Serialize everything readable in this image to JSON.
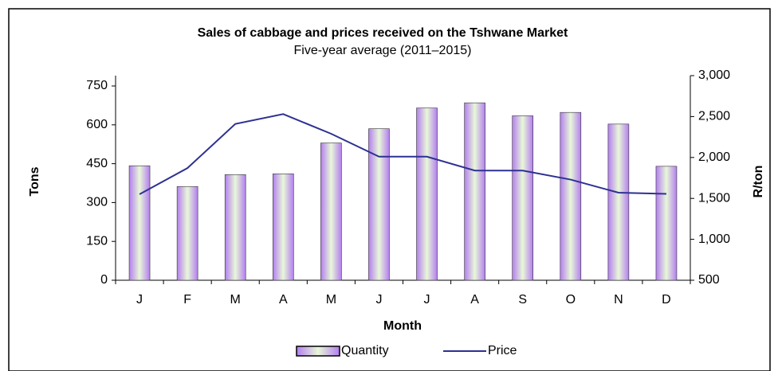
{
  "chart_data": {
    "type": "bar_line",
    "title": "Sales of cabbage and prices received on the Tshwane Market",
    "subtitle": "Five-year average (2011–2015)",
    "x_label": "Month",
    "y_label": "Tons",
    "y2_label": "R/ton",
    "categories": [
      "J",
      "F",
      "M",
      "A",
      "M",
      "J",
      "J",
      "A",
      "S",
      "O",
      "N",
      "D"
    ],
    "series": [
      {
        "name": "Quantity",
        "type": "bar",
        "color": "#b47ef0",
        "values": [
          442,
          362,
          408,
          411,
          530,
          585,
          665,
          685,
          635,
          648,
          603,
          440
        ]
      },
      {
        "name": "Price",
        "type": "line",
        "axis": "y2",
        "color": "#2e3192",
        "values": [
          1550,
          1870,
          2410,
          2530,
          2290,
          2010,
          2010,
          1840,
          1840,
          1730,
          1570,
          1555
        ]
      }
    ],
    "ylim": [
      0,
      790
    ],
    "yticks": [
      0,
      150,
      300,
      450,
      600,
      750
    ],
    "y2lim": [
      500,
      3000
    ],
    "y2ticks": [
      {
        "value": 500,
        "label": "500"
      },
      {
        "value": 1000,
        "label": "1,000"
      },
      {
        "value": 1500,
        "label": "1,500"
      },
      {
        "value": 2000,
        "label": "2,000"
      },
      {
        "value": 2500,
        "label": "2,500"
      },
      {
        "value": 3000,
        "label": "3,000"
      }
    ],
    "legend": "bottom"
  }
}
